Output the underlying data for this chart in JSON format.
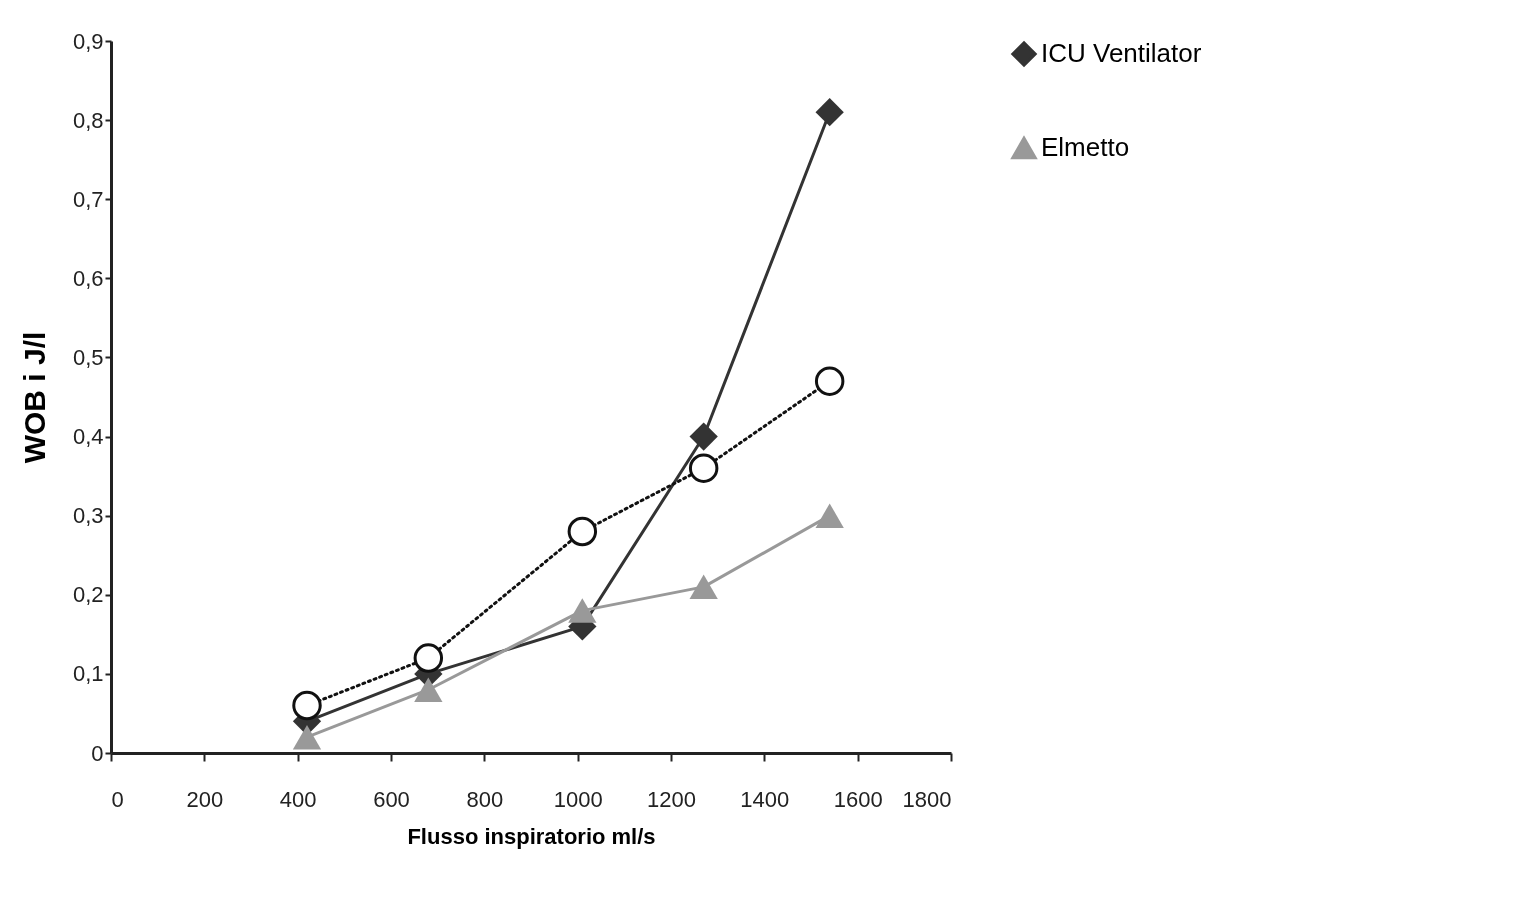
{
  "chart_data": {
    "type": "line",
    "xlabel": "Flusso inspiratorio ml/s",
    "ylabel": "WOB i J/l",
    "x": [
      420,
      680,
      1010,
      1270,
      1540
    ],
    "series": [
      {
        "name": "ICU Ventilator",
        "color": "#333333",
        "marker": "diamond",
        "line_style": "solid",
        "values": [
          0.04,
          0.1,
          0.16,
          0.4,
          0.81
        ]
      },
      {
        "color": "#111111",
        "marker": "circle",
        "line_style": "dotted",
        "values": [
          0.06,
          0.12,
          0.28,
          0.36,
          0.47
        ]
      },
      {
        "name": "Elmetto",
        "color": "#999999",
        "marker": "triangle",
        "line_style": "solid",
        "values": [
          0.02,
          0.08,
          0.18,
          0.21,
          0.3
        ]
      }
    ],
    "xlim": [
      0,
      1800
    ],
    "xticks": [
      0,
      200,
      400,
      600,
      800,
      1000,
      1200,
      1400,
      1600,
      1800
    ],
    "ylim": [
      0,
      0.9
    ],
    "yticks": [
      0,
      {
        "value": 0.1,
        "label": "0,1"
      },
      {
        "value": 0.2,
        "label": "0,2"
      },
      {
        "value": 0.3,
        "label": "0,3"
      },
      {
        "value": 0.4,
        "label": "0,4"
      },
      {
        "value": 0.5,
        "label": "0,5"
      },
      {
        "value": 0.6,
        "label": "0,6"
      },
      {
        "value": 0.7,
        "label": "0,7"
      },
      {
        "value": 0.8,
        "label": "0,8"
      },
      {
        "value": 0.9,
        "label": "0,9"
      }
    ],
    "grid": false,
    "legend": "right"
  }
}
